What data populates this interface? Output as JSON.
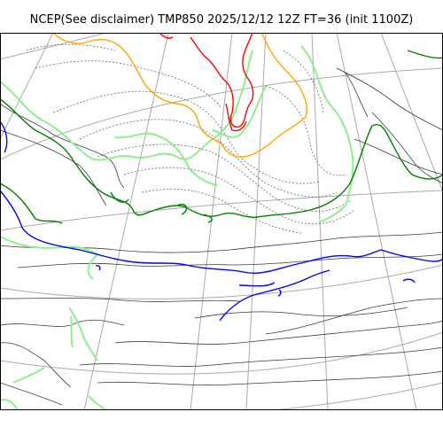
{
  "title": "NCEP(See disclaimer) TMP850 2025/12/12 12Z FT=36 (init 1100Z)",
  "colors": {
    "background": "#ffffff",
    "frame": "#000000",
    "graticule": "#a9a9a9",
    "coastline": "#555555",
    "isotherm_dotted": "#666666",
    "isotherm_solid": "#3c3c3c",
    "contour_light_green": "#90ee90",
    "contour_green": "#008000",
    "contour_blue": "#0000ff",
    "contour_orange": "#ffa500",
    "contour_red": "#ff0000"
  }
}
